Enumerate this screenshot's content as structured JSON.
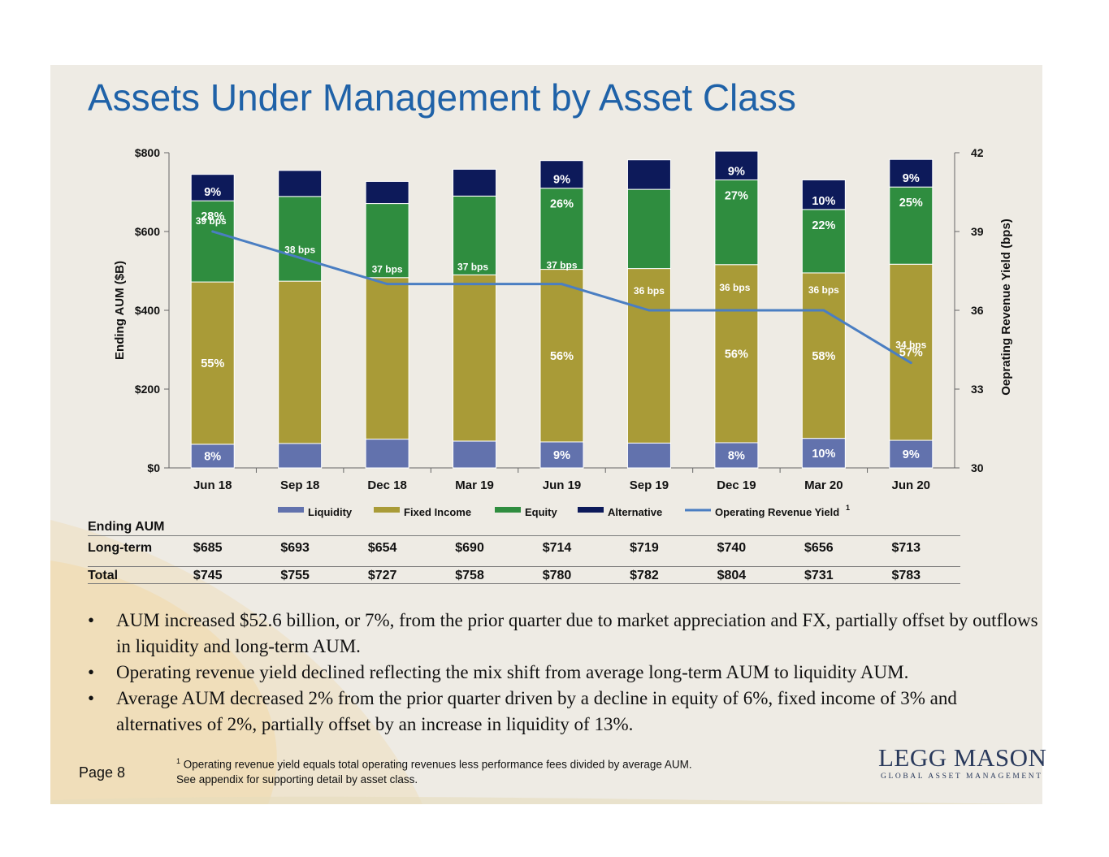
{
  "title": "Assets Under Management by Asset Class",
  "chart_data": {
    "type": "bar",
    "stacked": true,
    "categories": [
      "Jun 18",
      "Sep 18",
      "Dec 18",
      "Mar 19",
      "Jun 19",
      "Sep 19",
      "Dec 19",
      "Mar 20",
      "Jun 20"
    ],
    "series": [
      {
        "name": "Liquidity",
        "color": "#6272ad",
        "values": [
          60,
          62,
          73,
          68,
          66,
          63,
          64,
          75,
          70
        ]
      },
      {
        "name": "Fixed Income",
        "color": "#a99b37",
        "values": [
          412,
          412,
          410,
          422,
          438,
          443,
          452,
          420,
          447
        ]
      },
      {
        "name": "Equity",
        "color": "#2f8d3f",
        "values": [
          206,
          215,
          188,
          200,
          206,
          201,
          215,
          161,
          196
        ]
      },
      {
        "name": "Alternative",
        "color": "#0d1a5a",
        "values": [
          67,
          66,
          56,
          68,
          70,
          75,
          73,
          75,
          70
        ]
      }
    ],
    "line_series": {
      "name": "Operating Revenue Yield",
      "superscript": "1",
      "color": "#4a7ec2",
      "values": [
        39,
        38,
        37,
        37,
        37,
        36,
        36,
        36,
        34
      ]
    },
    "segment_labels": [
      {
        "category": "Jun 18",
        "series": "Liquidity",
        "text": "8%"
      },
      {
        "category": "Jun 18",
        "series": "Fixed Income",
        "text": "55%"
      },
      {
        "category": "Jun 18",
        "series": "Equity",
        "text": "28%"
      },
      {
        "category": "Jun 18",
        "series": "Alternative",
        "text": "9%"
      },
      {
        "category": "Jun 19",
        "series": "Liquidity",
        "text": "9%"
      },
      {
        "category": "Jun 19",
        "series": "Fixed Income",
        "text": "56%"
      },
      {
        "category": "Jun 19",
        "series": "Equity",
        "text": "26%"
      },
      {
        "category": "Jun 19",
        "series": "Alternative",
        "text": "9%"
      },
      {
        "category": "Dec 19",
        "series": "Liquidity",
        "text": "8%"
      },
      {
        "category": "Dec 19",
        "series": "Fixed Income",
        "text": "56%"
      },
      {
        "category": "Dec 19",
        "series": "Equity",
        "text": "27%"
      },
      {
        "category": "Dec 19",
        "series": "Alternative",
        "text": "9%"
      },
      {
        "category": "Mar 20",
        "series": "Liquidity",
        "text": "10%"
      },
      {
        "category": "Mar 20",
        "series": "Fixed Income",
        "text": "58%"
      },
      {
        "category": "Mar 20",
        "series": "Equity",
        "text": "22%"
      },
      {
        "category": "Mar 20",
        "series": "Alternative",
        "text": "10%"
      },
      {
        "category": "Jun 20",
        "series": "Liquidity",
        "text": "9%"
      },
      {
        "category": "Jun 20",
        "series": "Fixed Income",
        "text": "57%"
      },
      {
        "category": "Jun 20",
        "series": "Equity",
        "text": "25%"
      },
      {
        "category": "Jun 20",
        "series": "Alternative",
        "text": "9%"
      }
    ],
    "line_labels": [
      "39 bps",
      "38 bps",
      "37 bps",
      "37 bps",
      "37 bps",
      "36 bps",
      "36 bps",
      "36 bps",
      "34 bps"
    ],
    "ylabel": "Ending AUM ($B)",
    "y2label": "Oeprating Revenue Yield (bps)",
    "ylim": [
      0,
      800
    ],
    "y2lim": [
      30,
      42
    ],
    "yticks": [
      "$0",
      "$200",
      "$400",
      "$600",
      "$800"
    ],
    "y2ticks": [
      "30",
      "33",
      "36",
      "39",
      "42"
    ],
    "legend": [
      "Liquidity",
      "Fixed Income",
      "Equity",
      "Alternative",
      "Operating Revenue Yield"
    ],
    "legend_position": "bottom"
  },
  "table": {
    "header": "Ending AUM",
    "rows": [
      {
        "label": "Long-term",
        "values": [
          "$685",
          "$693",
          "$654",
          "$690",
          "$714",
          "$719",
          "$740",
          "$656",
          "$713"
        ]
      },
      {
        "label": "Total",
        "values": [
          "$745",
          "$755",
          "$727",
          "$758",
          "$780",
          "$782",
          "$804",
          "$731",
          "$783"
        ]
      }
    ]
  },
  "bullets": [
    "AUM increased $52.6 billion, or 7%, from the prior quarter due to market appreciation and FX, partially offset by outflows in liquidity and long-term AUM.",
    "Operating revenue yield declined reflecting the mix shift from average long-term AUM to liquidity AUM.",
    "Average AUM decreased 2% from the prior quarter driven by a decline in equity of 6%, fixed income of 3% and alternatives of 2%, partially offset by an increase in liquidity of 13%."
  ],
  "bullet_symbol": "•",
  "footnote": {
    "marker": "1",
    "line1": "Operating revenue yield equals total operating revenues less performance fees divided by average AUM.",
    "line2": "See appendix for supporting detail by asset class."
  },
  "page_label": "Page 8",
  "logo": {
    "name": "LEGG MASON",
    "tagline": "GLOBAL ASSET MANAGEMENT"
  }
}
